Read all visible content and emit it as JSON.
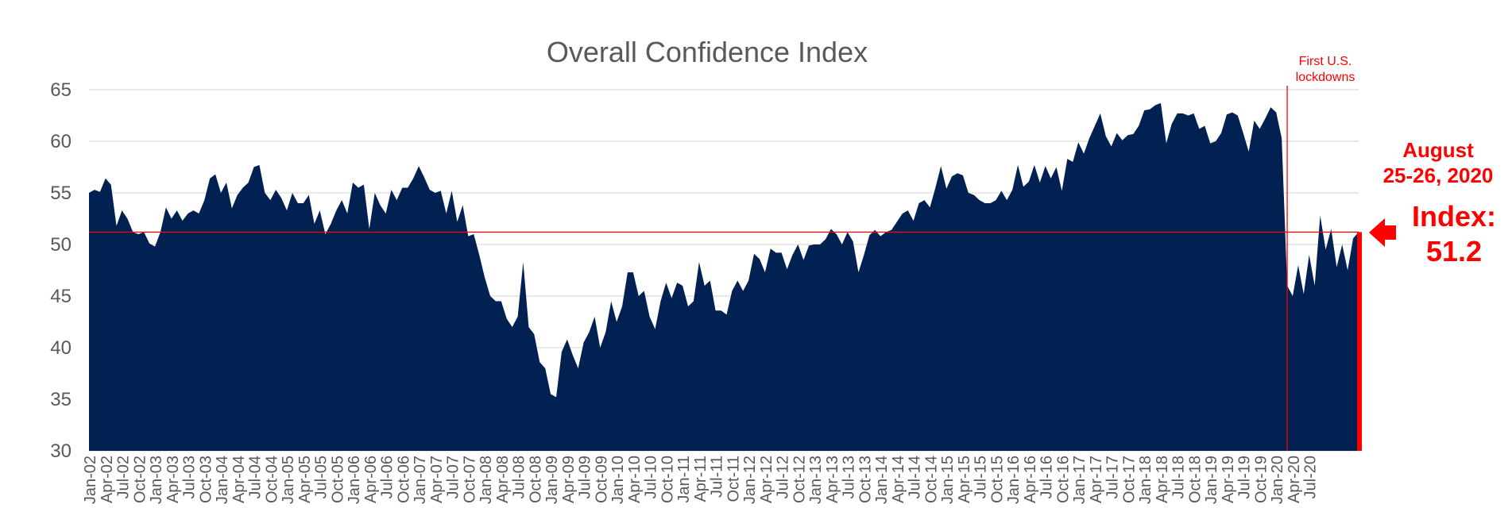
{
  "chart_data": {
    "type": "area",
    "title": "Overall Confidence Index",
    "xlabel": "",
    "ylabel": "",
    "ylim": [
      30,
      65
    ],
    "yticks": [
      30,
      35,
      40,
      45,
      50,
      55,
      60,
      65
    ],
    "grid": true,
    "legend": "none",
    "colors": {
      "area": "#002152",
      "annotation": "#ff0000",
      "grid": "#d9d9d9",
      "text": "#595959"
    },
    "x_tick_labels": [
      "Jan-02",
      "Apr-02",
      "Jul-02",
      "Oct-02",
      "Jan-03",
      "Apr-03",
      "Jul-03",
      "Oct-03",
      "Jan-04",
      "Apr-04",
      "Jul-04",
      "Oct-04",
      "Jan-05",
      "Apr-05",
      "Jul-05",
      "Oct-05",
      "Jan-06",
      "Apr-06",
      "Jul-06",
      "Oct-06",
      "Jan-07",
      "Apr-07",
      "Jul-07",
      "Oct-07",
      "Jan-08",
      "Apr-08",
      "Jul-08",
      "Oct-08",
      "Jan-09",
      "Apr-09",
      "Jul-09",
      "Oct-09",
      "Jan-10",
      "Apr-10",
      "Jul-10",
      "Oct-10",
      "Jan-11",
      "Apr-11",
      "Jul-11",
      "Oct-11",
      "Jan-12",
      "Apr-12",
      "Jul-12",
      "Oct-12",
      "Jan-13",
      "Apr-13",
      "Jul-13",
      "Oct-13",
      "Jan-14",
      "Apr-14",
      "Jul-14",
      "Oct-14",
      "Jan-15",
      "Apr-15",
      "Jul-15",
      "Oct-15",
      "Jan-16",
      "Apr-16",
      "Jul-16",
      "Oct-16",
      "Jan-17",
      "Apr-17",
      "Jul-17",
      "Oct-17",
      "Jan-18",
      "Apr-18",
      "Jul-18",
      "Oct-18",
      "Jan-19",
      "Apr-19",
      "Jul-19",
      "Oct-19",
      "Jan-20",
      "Apr-20",
      "Jul-20"
    ],
    "series": [
      {
        "x_start": "Jan-02",
        "values": [
          55.0,
          55.3,
          55.1,
          56.4,
          55.8,
          51.8,
          53.3,
          52.5,
          51.2,
          51.0,
          51.2,
          50.1,
          49.8,
          51.2,
          53.6,
          52.5,
          53.3,
          52.3,
          53.0,
          53.3,
          53.0,
          54.3,
          56.4,
          56.8,
          55.0,
          56.0,
          53.5,
          54.8,
          55.5,
          56.0,
          57.5,
          57.7,
          55.0,
          54.3,
          55.3,
          54.5,
          53.3,
          55.0,
          54.0,
          54.0,
          54.8,
          52.0,
          53.3,
          51.0,
          52.0,
          53.3,
          54.3,
          53.0,
          56.0,
          55.5,
          55.8,
          51.5,
          55.0,
          53.8,
          53.0,
          55.3,
          54.3,
          55.5,
          55.5,
          56.4,
          57.6,
          56.5,
          55.3,
          55.0,
          55.2,
          53.0,
          55.2,
          52.2,
          53.8,
          50.8,
          51.0,
          49.0,
          46.8,
          45.0,
          44.5,
          44.5,
          42.8,
          42.0,
          43.0,
          48.3,
          42.0,
          41.3,
          38.6,
          38.0,
          35.5,
          35.2,
          39.6,
          40.8,
          39.3,
          38.0,
          40.5,
          41.5,
          43.0,
          40.0,
          41.5,
          44.5,
          42.5,
          44.0,
          47.3,
          47.3,
          45.0,
          45.5,
          43.0,
          41.8,
          44.5,
          46.3,
          44.8,
          46.3,
          46.0,
          44.0,
          44.5,
          48.3,
          46.0,
          46.5,
          43.6,
          43.6,
          43.2,
          45.5,
          46.5,
          45.5,
          46.5,
          49.1,
          48.6,
          47.3,
          49.6,
          49.2,
          49.2,
          47.6,
          49.0,
          50.0,
          48.5,
          49.9,
          50.0,
          50.0,
          50.5,
          51.5,
          51.0,
          50.0,
          51.2,
          50.3,
          47.3,
          49.0,
          50.9,
          51.4,
          50.8,
          51.2,
          51.4,
          52.2,
          53.0,
          53.3,
          52.3,
          54.0,
          54.3,
          53.6,
          55.5,
          57.6,
          55.4,
          56.6,
          56.9,
          56.7,
          55.0,
          54.8,
          54.3,
          54.0,
          54.0,
          54.3,
          55.2,
          54.3,
          55.3,
          57.7,
          55.6,
          56.1,
          57.7,
          56.0,
          57.6,
          56.4,
          57.5,
          55.2,
          58.3,
          58.0,
          59.9,
          58.8,
          60.3,
          61.5,
          62.7,
          60.5,
          59.5,
          60.8,
          60.1,
          60.6,
          60.7,
          61.5,
          63.0,
          63.1,
          63.5,
          63.7,
          59.8,
          61.7,
          62.7,
          62.7,
          62.5,
          62.7,
          61.2,
          61.5,
          59.8,
          60.0,
          60.8,
          62.6,
          62.8,
          62.5,
          60.8,
          59.0,
          62.0,
          61.2,
          62.2,
          63.3,
          62.8,
          60.3,
          46.0,
          45.0,
          48.0,
          45.2,
          49.0,
          46.0,
          52.8,
          49.5,
          51.5,
          47.8,
          50.0,
          47.5,
          50.6,
          51.2
        ]
      }
    ],
    "reference_line": {
      "value": 51.2
    },
    "event_line": {
      "x": "Mar-20",
      "label_line1": "First U.S.",
      "label_line2": "lockdowns"
    },
    "annotation": {
      "date_line1": "August",
      "date_line2": "25-26, 2020",
      "index_label": "Index:",
      "index_value": "51.2"
    }
  }
}
